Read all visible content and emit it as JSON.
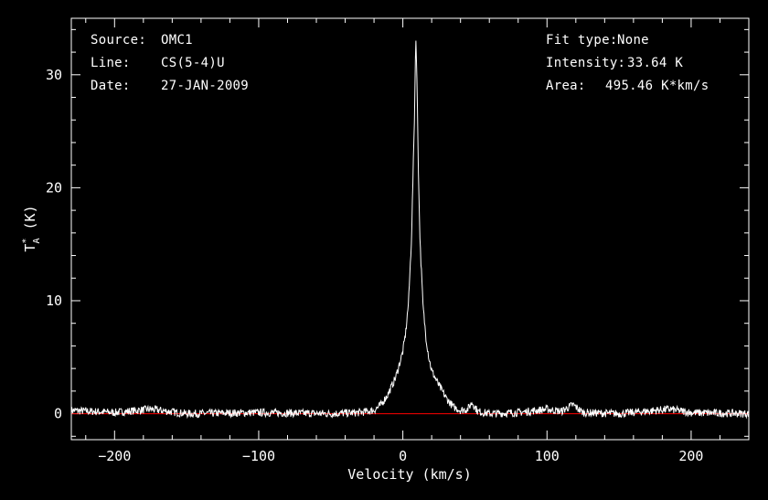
{
  "info": {
    "source_label": "Source:",
    "source_value": "OMC1",
    "line_label": "Line:",
    "line_value": "CS(5-4)U",
    "date_label": "Date:",
    "date_value": "27-JAN-2009",
    "fit_label": "Fit type:",
    "fit_value": "None",
    "intensity_label": "Intensity:",
    "intensity_value": "33.64 K",
    "area_label": "Area:",
    "area_value": "495.46 K*km/s"
  },
  "chart_data": {
    "type": "line",
    "title": "",
    "xlabel": "Velocity (km/s)",
    "ylabel": "T*A (K)",
    "xlim": [
      -230,
      240
    ],
    "ylim": [
      -2.3,
      35
    ],
    "xticks": [
      -200,
      -100,
      0,
      100,
      200
    ],
    "xtick_labels": [
      "−200",
      "−100",
      "0",
      "100",
      "200"
    ],
    "yticks": [
      0,
      10,
      20,
      30
    ],
    "ytick_labels": [
      "0",
      "10",
      "20",
      "30"
    ],
    "grid": false,
    "colors": {
      "background": "#000000",
      "axes": "#ffffff",
      "spectrum": "#ffffff",
      "baseline": "#ff0000"
    },
    "series": [
      {
        "values_description_only": false,
        "x": [
          -230,
          -200,
          -175,
          -150,
          -100,
          -50,
          -30,
          -20,
          -15,
          -10,
          -5,
          0,
          2,
          4,
          6,
          8,
          9,
          10,
          11,
          12,
          14,
          16,
          18,
          20,
          25,
          30,
          35,
          40,
          45,
          48,
          52,
          60,
          80,
          100,
          110,
          118,
          125,
          150,
          185,
          200,
          240
        ],
        "y": [
          0.3,
          0.1,
          0.4,
          0.0,
          0.1,
          0.0,
          0.1,
          0.3,
          0.8,
          1.8,
          3.2,
          5.5,
          7.2,
          10.0,
          15.5,
          26.0,
          33.64,
          28.0,
          20.0,
          15.0,
          9.5,
          6.8,
          5.0,
          3.8,
          2.5,
          1.4,
          0.6,
          0.3,
          0.4,
          1.0,
          0.2,
          0.0,
          0.1,
          0.4,
          0.2,
          0.8,
          0.1,
          0.0,
          0.4,
          0.1,
          0.0
        ]
      },
      {
        "x": [
          -230,
          240
        ],
        "y": [
          0,
          0
        ]
      }
    ]
  }
}
